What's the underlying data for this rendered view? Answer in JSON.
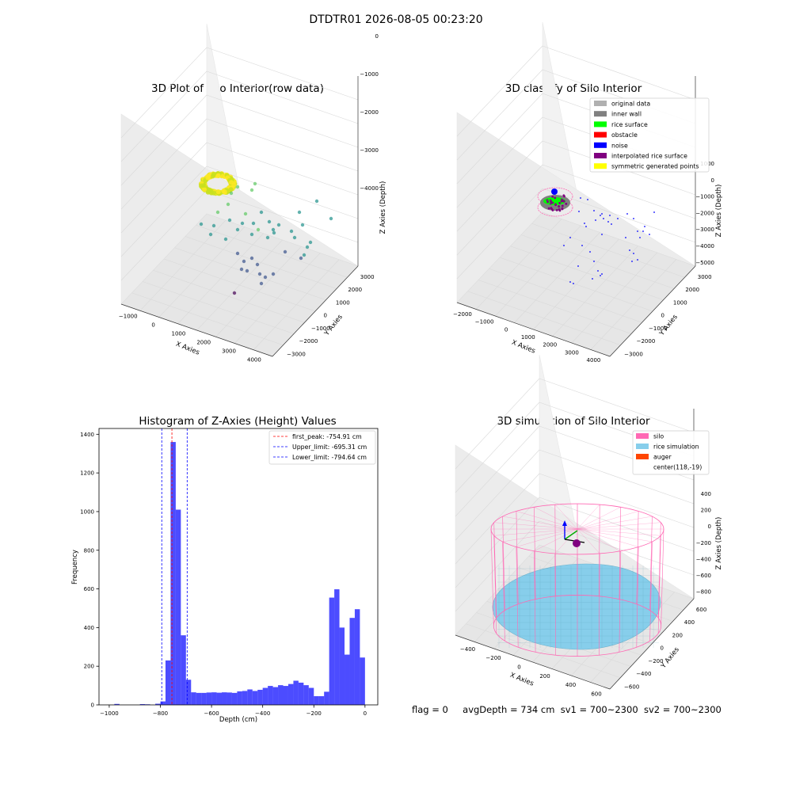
{
  "suptitle": "DTDTR01 2026-08-05 00:23:20",
  "status": {
    "flag": "flag = 0",
    "avg_depth": "avgDepth = 734 cm",
    "sv1": "sv1 = 700~2300",
    "sv2": "sv2 = 700~2300"
  },
  "colors": {
    "viridis": [
      "#440154",
      "#3b528b",
      "#21918c",
      "#5ec962",
      "#fde725"
    ],
    "hist_bar": "#0000ff",
    "silo": "#ff69b4",
    "rice": "#87ceeb",
    "auger": "#ff4500"
  },
  "chart_data": [
    {
      "type": "scatter",
      "subtype": "3d",
      "title": "3D Plot of Silo Interior(row data)",
      "xlabel": "X Axies",
      "ylabel": "Y Axies",
      "zlabel": "Z Axies (Depth)",
      "xticks": [
        "−1000",
        "0",
        "1000",
        "2000",
        "3000",
        "4000"
      ],
      "yticks": [
        "−3000",
        "−2000",
        "−1000",
        "0",
        "1000",
        "2000",
        "3000"
      ],
      "zticks": [
        "0",
        "−1000",
        "−2000",
        "−3000",
        "−4000"
      ],
      "colormap": "viridis"
    },
    {
      "type": "scatter",
      "subtype": "3d",
      "title": "3D classify of Silo Interior",
      "xlabel": "X Axies",
      "ylabel": "Y Axies",
      "zlabel": "Z Axies (Depth)",
      "xticks": [
        "−2000",
        "−1000",
        "0",
        "1000",
        "2000",
        "3000",
        "4000"
      ],
      "yticks": [
        "−3000",
        "−2000",
        "−1000",
        "0",
        "1000",
        "2000",
        "3000"
      ],
      "zticks": [
        "1000",
        "0",
        "−1000",
        "−2000",
        "−3000",
        "−4000",
        "−5000"
      ],
      "legend_position": "top-right",
      "legend": [
        {
          "name": "original data",
          "color": "#b0b0b0"
        },
        {
          "name": "inner wall",
          "color": "#808080"
        },
        {
          "name": "rice surface",
          "color": "#00ff00"
        },
        {
          "name": "obstacle",
          "color": "#ff0000"
        },
        {
          "name": "noise",
          "color": "#0000ff"
        },
        {
          "name": "interpolated rice surface",
          "color": "#800080"
        },
        {
          "name": "symmetric generated points",
          "color": "#ffff00"
        }
      ]
    },
    {
      "type": "bar",
      "subtype": "histogram",
      "title": "Histogram of Z-Axies (Height) Values",
      "xlabel": "Depth (cm)",
      "ylabel": "Frequency",
      "xlim": [
        -1040,
        50
      ],
      "ylim": [
        0,
        1430
      ],
      "grid": false,
      "xticks": [
        -1000,
        -800,
        -600,
        -400,
        -200,
        0
      ],
      "xtick_labels": [
        "−1000",
        "−800",
        "−600",
        "−400",
        "−200",
        "0"
      ],
      "yticks": [
        0,
        200,
        400,
        600,
        800,
        1000,
        1200,
        1400
      ],
      "bin_width": 20,
      "bins": [
        [
          -980,
          -960,
          5
        ],
        [
          -880,
          -860,
          4
        ],
        [
          -860,
          -840,
          3
        ],
        [
          -820,
          -800,
          6
        ],
        [
          -800,
          -780,
          18
        ],
        [
          -780,
          -760,
          230
        ],
        [
          -760,
          -740,
          1360
        ],
        [
          -740,
          -720,
          1010
        ],
        [
          -720,
          -700,
          360
        ],
        [
          -700,
          -680,
          130
        ],
        [
          -680,
          -660,
          65
        ],
        [
          -660,
          -640,
          62
        ],
        [
          -640,
          -620,
          62
        ],
        [
          -620,
          -600,
          64
        ],
        [
          -600,
          -580,
          65
        ],
        [
          -580,
          -560,
          63
        ],
        [
          -560,
          -540,
          65
        ],
        [
          -540,
          -520,
          64
        ],
        [
          -520,
          -500,
          62
        ],
        [
          -500,
          -480,
          70
        ],
        [
          -480,
          -460,
          72
        ],
        [
          -460,
          -440,
          80
        ],
        [
          -440,
          -420,
          72
        ],
        [
          -420,
          -400,
          78
        ],
        [
          -400,
          -380,
          88
        ],
        [
          -380,
          -360,
          98
        ],
        [
          -360,
          -340,
          92
        ],
        [
          -340,
          -320,
          102
        ],
        [
          -320,
          -300,
          98
        ],
        [
          -300,
          -280,
          108
        ],
        [
          -280,
          -260,
          125
        ],
        [
          -260,
          -240,
          115
        ],
        [
          -240,
          -220,
          102
        ],
        [
          -220,
          -200,
          88
        ],
        [
          -200,
          -180,
          45
        ],
        [
          -180,
          -160,
          45
        ],
        [
          -160,
          -140,
          68
        ],
        [
          -140,
          -120,
          555
        ],
        [
          -120,
          -100,
          598
        ],
        [
          -100,
          -80,
          400
        ],
        [
          -80,
          -60,
          260
        ],
        [
          -60,
          -40,
          450
        ],
        [
          -40,
          -20,
          495
        ],
        [
          -20,
          0,
          245
        ]
      ],
      "lines": [
        {
          "name": "first_peak: -754.91 cm",
          "x": -754.91,
          "color": "#ff0000"
        },
        {
          "name": "Upper_limit: -695.31 cm",
          "x": -695.31,
          "color": "#0000ff"
        },
        {
          "name": "Lower_limit: -794.64 cm",
          "x": -794.64,
          "color": "#0000ff"
        }
      ],
      "legend_position": "top-right"
    },
    {
      "type": "scatter",
      "subtype": "3d",
      "title": "3D simulation of Silo Interior",
      "xlabel": "X Axies",
      "ylabel": "Y Axies",
      "zlabel": "Z Axies (Depth)",
      "xticks": [
        "−400",
        "−200",
        "0",
        "200",
        "400",
        "600"
      ],
      "yticks": [
        "−600",
        "−400",
        "−200",
        "0",
        "200",
        "400",
        "600"
      ],
      "zticks": [
        "400",
        "200",
        "0",
        "−200",
        "−400",
        "−600",
        "−800"
      ],
      "legend_position": "top-right",
      "legend": [
        {
          "name": "silo",
          "color": "#ff69b4"
        },
        {
          "name": "rice simulation",
          "color": "#87ceeb"
        },
        {
          "name": "auger",
          "color": "#ff4500"
        },
        {
          "name": "center(118,-19)",
          "color": ""
        }
      ]
    }
  ]
}
